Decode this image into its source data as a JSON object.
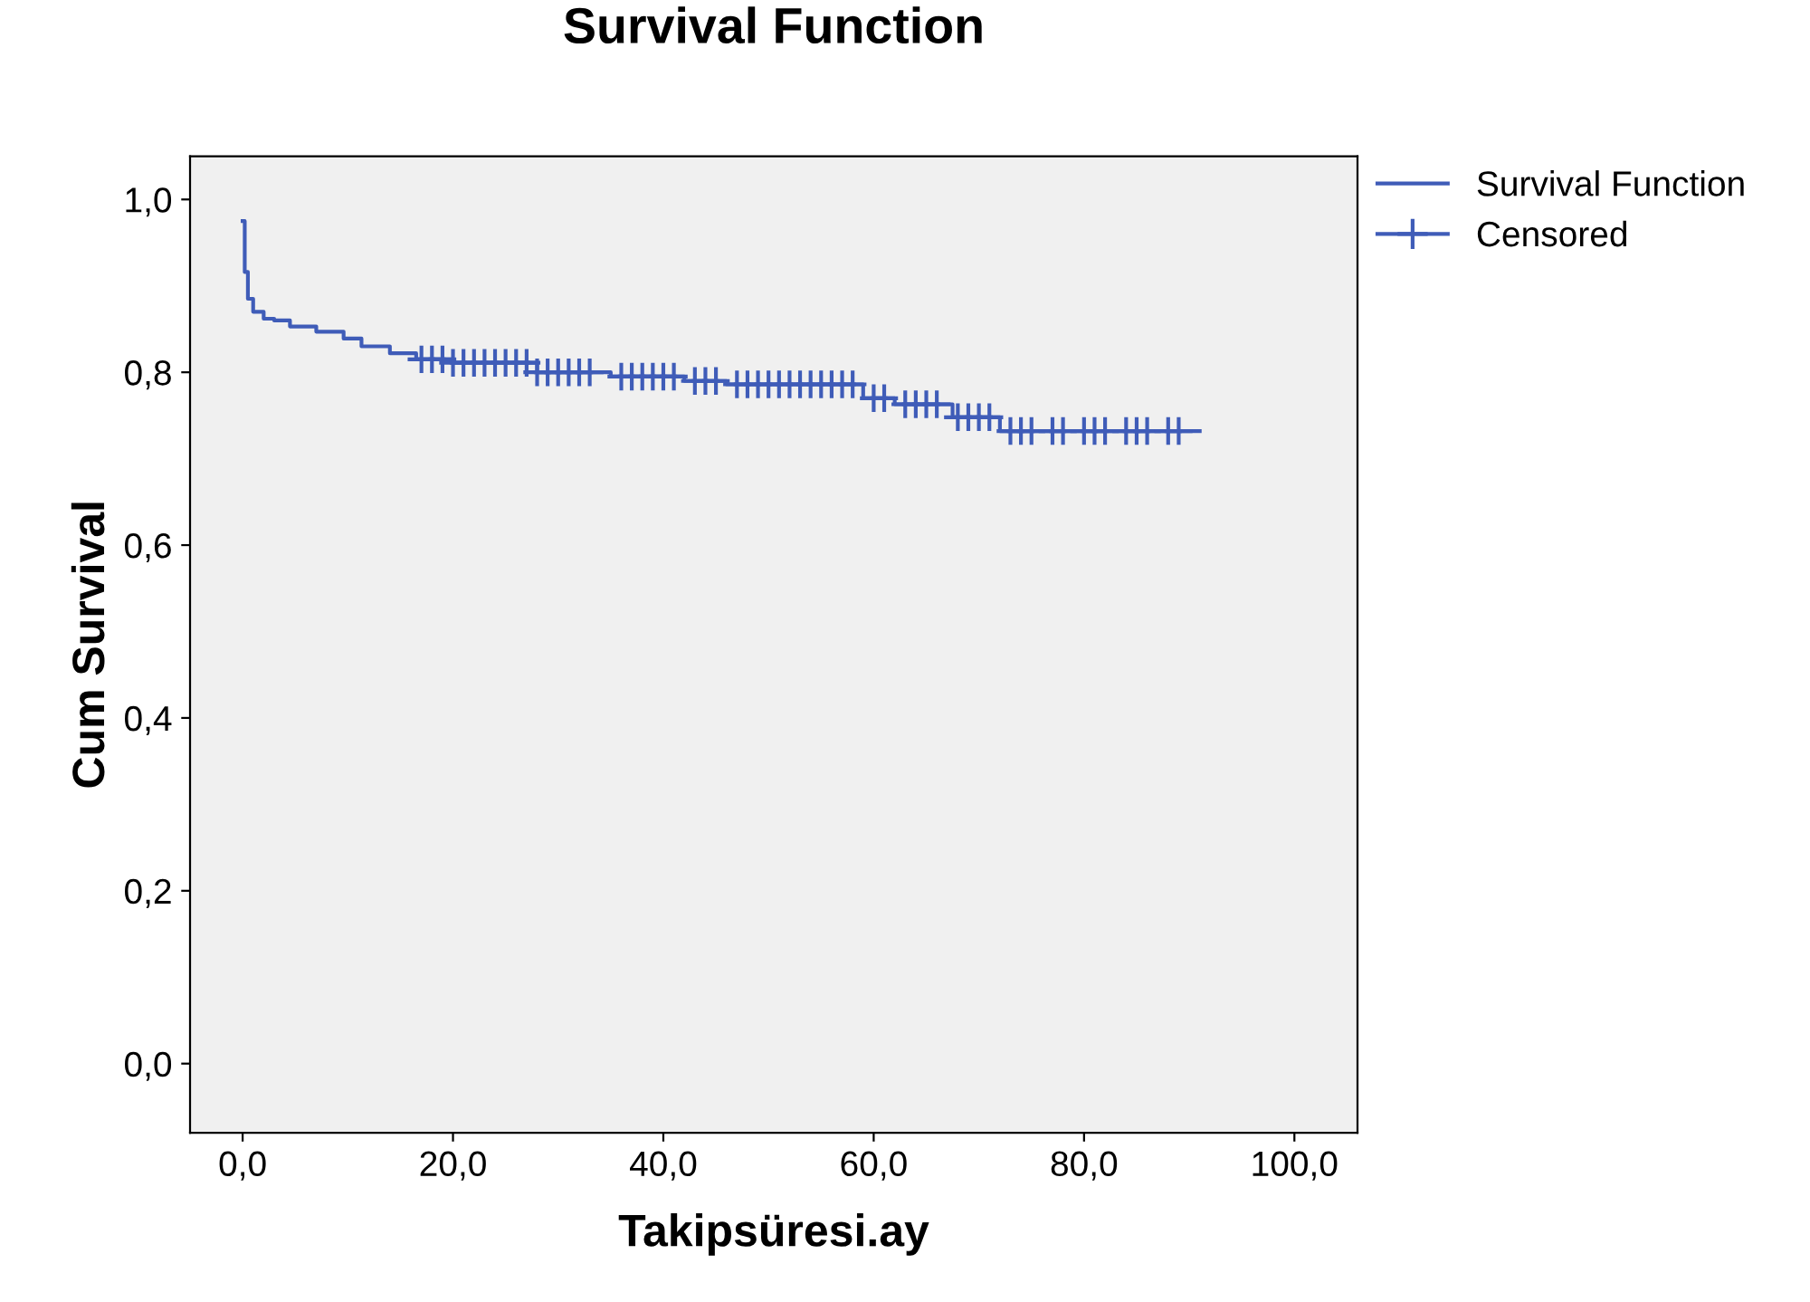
{
  "chart_data": {
    "type": "step",
    "title": "Survival Function",
    "xlabel": "Takipsüresi.ay",
    "ylabel": "Cum Survival",
    "legend": "top right",
    "grid": false,
    "xlim": [
      -5,
      106
    ],
    "ylim": [
      -0.08,
      1.05
    ],
    "xticks": [
      {
        "value": 0,
        "label": "0,0"
      },
      {
        "value": 20,
        "label": "20,0"
      },
      {
        "value": 40,
        "label": "40,0"
      },
      {
        "value": 60,
        "label": "60,0"
      },
      {
        "value": 80,
        "label": "80,0"
      },
      {
        "value": 100,
        "label": "100,0"
      }
    ],
    "yticks": [
      {
        "value": 0,
        "label": "0,0"
      },
      {
        "value": 0.2,
        "label": "0,2"
      },
      {
        "value": 0.4,
        "label": "0,4"
      },
      {
        "value": 0.6,
        "label": "0,6"
      },
      {
        "value": 0.8,
        "label": "0,8"
      },
      {
        "value": 1.0,
        "label": "1,0"
      }
    ],
    "series": [
      {
        "name": "Survival Function",
        "color": "#3f5cb8",
        "marker": "none",
        "x": [
          0,
          0.2,
          0.5,
          1,
          2,
          3,
          4.5,
          7,
          9.6,
          11.3,
          14,
          16.5,
          20,
          28,
          35,
          42,
          46,
          59,
          62,
          67.5,
          72,
          91
        ],
        "values": [
          0.975,
          0.916,
          0.885,
          0.87,
          0.862,
          0.86,
          0.853,
          0.847,
          0.839,
          0.83,
          0.822,
          0.815,
          0.811,
          0.8,
          0.795,
          0.79,
          0.786,
          0.77,
          0.763,
          0.748,
          0.732,
          0.732
        ]
      },
      {
        "name": "Censored",
        "type": "scatter",
        "color": "#3f5cb8",
        "marker": "cross",
        "x": [
          17,
          18,
          19,
          20,
          21,
          22,
          23,
          24,
          25,
          26,
          27,
          28,
          29,
          30,
          31,
          32,
          33,
          36,
          37,
          38,
          39,
          40,
          41,
          43,
          44,
          45,
          47,
          48,
          49,
          50,
          51,
          52,
          53,
          54,
          55,
          56,
          57,
          58,
          60,
          61,
          63,
          64,
          65,
          66,
          68,
          69,
          70,
          71,
          73,
          74,
          75,
          77,
          78,
          80,
          81,
          82,
          84,
          85,
          86,
          88,
          89
        ],
        "values": [
          0.815,
          0.815,
          0.815,
          0.811,
          0.811,
          0.811,
          0.811,
          0.811,
          0.811,
          0.811,
          0.811,
          0.8,
          0.8,
          0.8,
          0.8,
          0.8,
          0.8,
          0.795,
          0.795,
          0.795,
          0.795,
          0.795,
          0.795,
          0.79,
          0.79,
          0.79,
          0.786,
          0.786,
          0.786,
          0.786,
          0.786,
          0.786,
          0.786,
          0.786,
          0.786,
          0.786,
          0.786,
          0.786,
          0.77,
          0.77,
          0.763,
          0.763,
          0.763,
          0.763,
          0.748,
          0.748,
          0.748,
          0.748,
          0.732,
          0.732,
          0.732,
          0.732,
          0.732,
          0.732,
          0.732,
          0.732,
          0.732,
          0.732,
          0.732,
          0.732,
          0.732
        ]
      }
    ]
  }
}
